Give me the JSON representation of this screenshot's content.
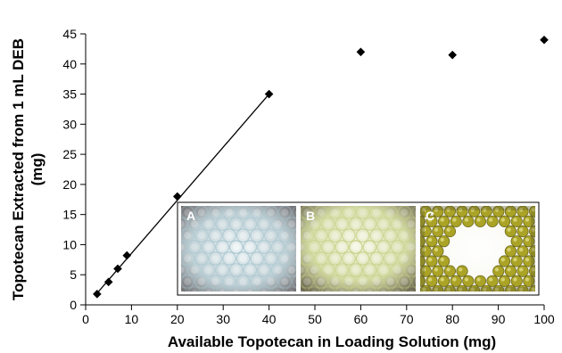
{
  "chart_data": {
    "type": "scatter",
    "xlabel": "Available Topotecan in Loading Solution (mg)",
    "ylabel": [
      "Topotecan Extracted from 1 mL DEB",
      "(mg)"
    ],
    "xlim": [
      0,
      100
    ],
    "ylim": [
      0,
      45
    ],
    "x_ticks": [
      0,
      10,
      20,
      30,
      40,
      50,
      60,
      70,
      80,
      90,
      100
    ],
    "y_ticks": [
      0,
      5,
      10,
      15,
      20,
      25,
      30,
      35,
      40,
      45
    ],
    "grid": false,
    "marker": "diamond",
    "points": [
      {
        "x": 2.5,
        "y": 1.8
      },
      {
        "x": 5,
        "y": 3.8
      },
      {
        "x": 7,
        "y": 6.0
      },
      {
        "x": 9,
        "y": 8.2
      },
      {
        "x": 20,
        "y": 18.0
      },
      {
        "x": 40,
        "y": 35.0
      },
      {
        "x": 60,
        "y": 42.0
      },
      {
        "x": 80,
        "y": 41.5
      },
      {
        "x": 100,
        "y": 44.0
      }
    ],
    "fit_line": {
      "x": [
        2,
        40
      ],
      "y": [
        1.5,
        35.0
      ]
    },
    "inset_panels": [
      {
        "label": "A",
        "bead_color": "#a9c6cf",
        "background": "#d8e4e8"
      },
      {
        "label": "B",
        "bead_color": "#c7cf86",
        "background": "#e6ecc7"
      },
      {
        "label": "C",
        "bead_color": "#aaa326",
        "background": "#ffffff"
      }
    ]
  }
}
